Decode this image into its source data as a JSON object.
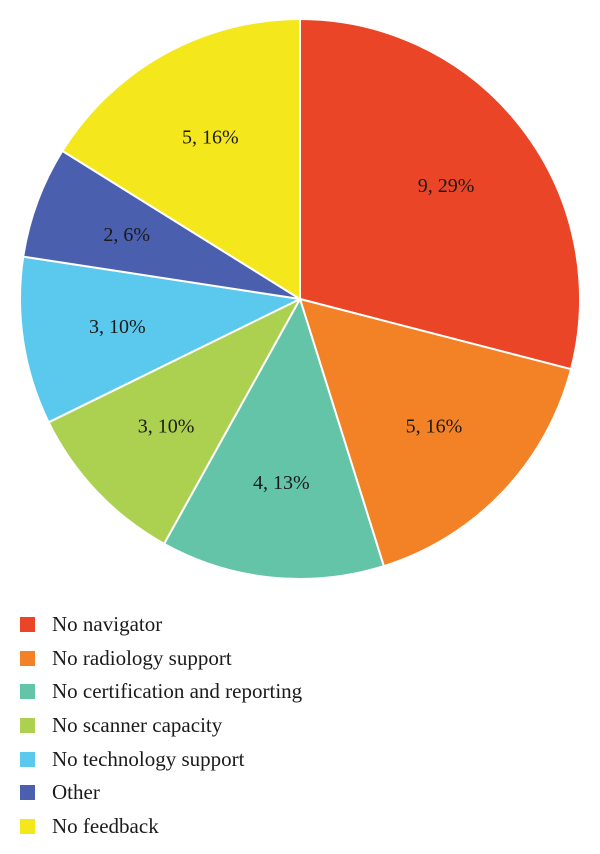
{
  "chart_data": {
    "type": "pie",
    "title": "",
    "start_angle_deg": 0,
    "direction": "clockwise",
    "slices": [
      {
        "name": "No navigator",
        "count": 9,
        "percent": 29,
        "label": "9, 29%",
        "color": "#EA4526"
      },
      {
        "name": "No radiology support",
        "count": 5,
        "percent": 16,
        "label": "5, 16%",
        "color": "#F38126"
      },
      {
        "name": "No certification and reporting",
        "count": 4,
        "percent": 13,
        "label": "4, 13%",
        "color": "#63C4A8"
      },
      {
        "name": "No scanner capacity",
        "count": 3,
        "percent": 10,
        "label": "3, 10%",
        "color": "#ACD04F"
      },
      {
        "name": "No technology support",
        "count": 3,
        "percent": 10,
        "label": "3, 10%",
        "color": "#5BC8EE"
      },
      {
        "name": "Other",
        "count": 2,
        "percent": 6,
        "label": "2, 6%",
        "color": "#4B5FAF"
      },
      {
        "name": "No feedback",
        "count": 5,
        "percent": 16,
        "label": "5, 16%",
        "color": "#F4E71C"
      }
    ],
    "legend_placement": "bottom-left"
  }
}
